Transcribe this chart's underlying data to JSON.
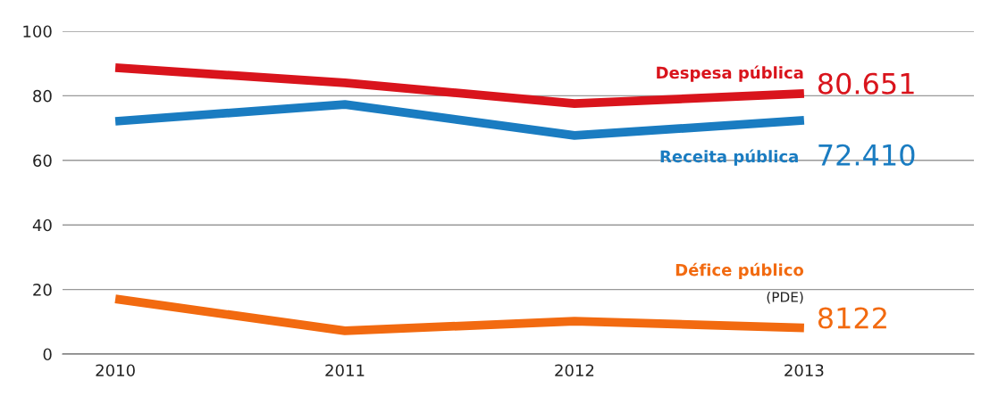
{
  "chart_data": {
    "type": "line",
    "x": [
      2010,
      2011,
      2012,
      2013
    ],
    "xlim": [
      2009.77,
      2013.74
    ],
    "xticks": [
      2010,
      2011,
      2012,
      2013
    ],
    "ylim": [
      0,
      100
    ],
    "yticks": [
      0,
      20,
      40,
      60,
      80,
      100
    ],
    "grid": "y",
    "legend": false,
    "marker": "none",
    "line_style": "solid",
    "series": [
      {
        "name": "Despesa pública",
        "color": "#d9141c",
        "values": [
          88.7,
          84.0,
          77.6,
          80.7
        ]
      },
      {
        "name": "Receita pública",
        "color": "#1a7cc1",
        "values": [
          72.1,
          77.3,
          67.7,
          72.4
        ]
      },
      {
        "name": "Défice público",
        "color": "#f26a10",
        "values": [
          17.1,
          7.2,
          10.2,
          8.1
        ]
      }
    ],
    "annotations": [
      "80.651",
      "72.410",
      "8122",
      "(PDE)"
    ]
  }
}
